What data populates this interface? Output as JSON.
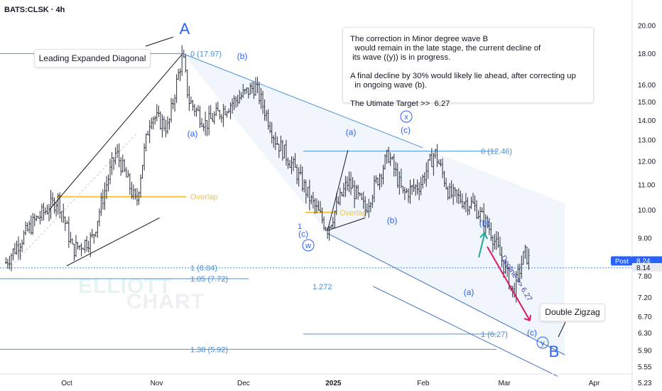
{
  "chart_data": {
    "type": "candlestick",
    "symbol": "BATS:CLSK · 4h",
    "y_scale": "log",
    "ylim": [
      5.2,
      21.8
    ],
    "y_ticks": [
      "20.00",
      "18.00",
      "16.00",
      "15.00",
      "14.00",
      "13.00",
      "12.00",
      "11.00",
      "10.00",
      "9.00",
      "8.14",
      "7.80",
      "7.20",
      "6.70",
      "6.30",
      "5.90",
      "5.55",
      "5.23"
    ],
    "x_ticks": [
      "Oct",
      "Nov",
      "Dec",
      "2025",
      "Feb",
      "Mar",
      "Apr"
    ],
    "post_price": {
      "label": "Post",
      "value": "8.24"
    },
    "last_price": "8.14",
    "price_path": [
      [
        "2024-09-10",
        8.2
      ],
      [
        "2024-09-20",
        9.6
      ],
      [
        "2024-09-28",
        10.4
      ],
      [
        "2024-10-03",
        8.6
      ],
      [
        "2024-10-10",
        9.0
      ],
      [
        "2024-10-18",
        12.4
      ],
      [
        "2024-10-25",
        10.2
      ],
      [
        "2024-10-30",
        14.3
      ],
      [
        "2024-11-05",
        13.6
      ],
      [
        "2024-11-10",
        17.9
      ],
      [
        "2024-11-12",
        15.1
      ],
      [
        "2024-11-18",
        13.8
      ],
      [
        "2024-11-25",
        14.7
      ],
      [
        "2024-12-05",
        15.9
      ],
      [
        "2024-12-12",
        13.0
      ],
      [
        "2024-12-18",
        11.8
      ],
      [
        "2024-12-24",
        10.4
      ],
      [
        "2024-12-30",
        9.3
      ],
      [
        "2025-01-06",
        11.1
      ],
      [
        "2025-01-12",
        10.0
      ],
      [
        "2025-01-20",
        12.3
      ],
      [
        "2025-01-25",
        10.6
      ],
      [
        "2025-01-31",
        11.0
      ],
      [
        "2025-02-05",
        12.4
      ],
      [
        "2025-02-10",
        10.6
      ],
      [
        "2025-02-18",
        10.2
      ],
      [
        "2025-02-24",
        9.3
      ],
      [
        "2025-02-28",
        8.3
      ],
      [
        "2025-03-04",
        7.3
      ],
      [
        "2025-03-08",
        8.5
      ],
      [
        "2025-03-10",
        8.2
      ]
    ],
    "levels": [
      {
        "label": "0 (17.97)",
        "value": 17.97
      },
      {
        "label": "0 (12.46)",
        "value": 12.46
      },
      {
        "label": "1 (8.04)",
        "value": 8.04
      },
      {
        "label": "1.05 (7.72)",
        "value": 7.72
      },
      {
        "label": "1.272",
        "value": 7.5
      },
      {
        "label": "1 (6.27)",
        "value": 6.27
      },
      {
        "label": "1.38 (5.92)",
        "value": 5.92
      }
    ],
    "overlap_levels": [
      {
        "label": "Overlap",
        "value": 10.5
      },
      {
        "label": "Overlap",
        "value": 9.9
      }
    ],
    "wave_labels": {
      "A": "A",
      "B": "B",
      "b_paren_1": "(b)",
      "a_paren_1": "(a)",
      "a_paren_2": "(a)",
      "c_paren_2": "(c)",
      "x_circle": "x",
      "b_paren_2": "(b)",
      "one": "1",
      "c_paren_1": "(c)",
      "w_circle": "w",
      "a_paren_3": "(a)",
      "b_paren_3": "(b)",
      "c_paren_3": "(c)",
      "y_circle": "y"
    },
    "annotations": {
      "leading_diagonal": "Leading Expanded Diagonal",
      "double_zigzag": "Double Zigzag",
      "decline": "Decline >> 6.27"
    },
    "note_lines": [
      "The correction in Minor degree wave B",
      "  would remain in the late stage, the current decline of",
      " its wave ((y)) is in progress.",
      "",
      "A final decline by 30% would likely lie ahead, after correcting up",
      "  in ongoing wave (b).",
      "",
      "The Utimate Target >>  6.27"
    ],
    "watermark": [
      "ELLIOTT",
      "CHART"
    ],
    "colors": {
      "label_blue": "#2962ff",
      "fib_blue": "#4a90d9",
      "channel_fill": "#eef4fb",
      "overlap_yellow": "#f7c631",
      "decline_arrow": "#d81b60",
      "up_arrow": "#26a69a",
      "candle": "#2a2e39",
      "post_badge": "#2962ff"
    }
  }
}
